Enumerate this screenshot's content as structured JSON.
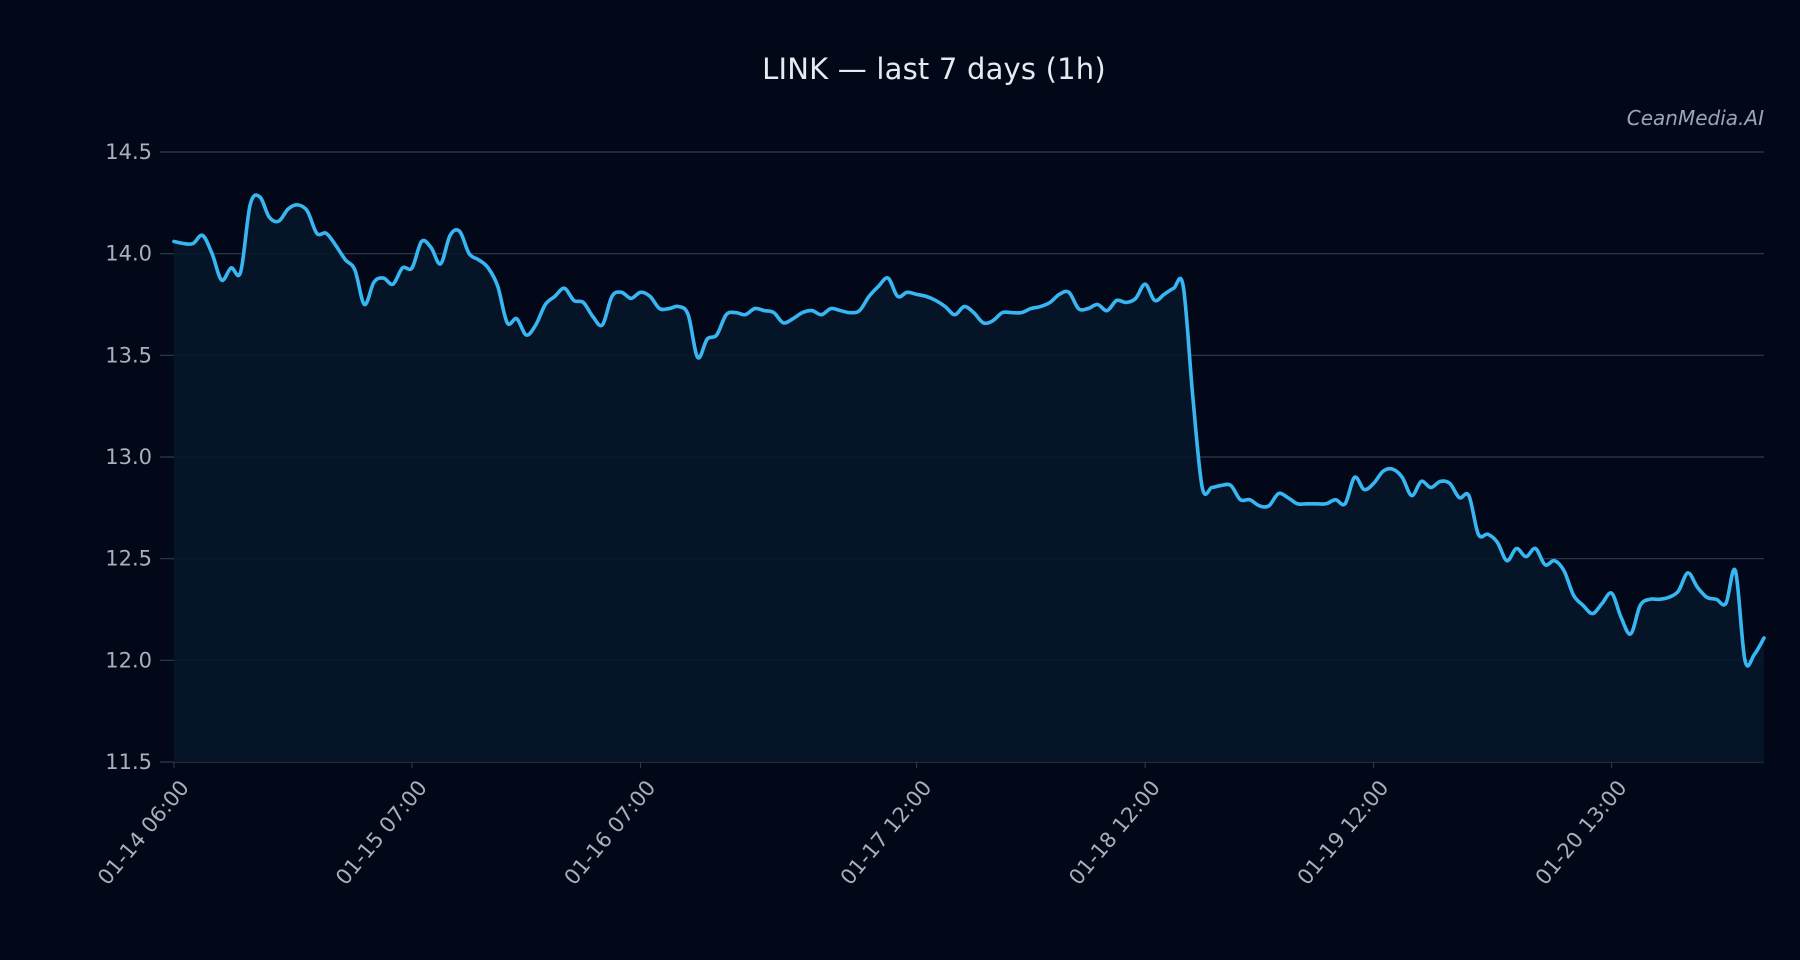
{
  "watermark": "CeanMedia.AI",
  "colors": {
    "background": "#020817",
    "line": "#38b6f2",
    "area": "#071629",
    "grid": "#2f3b4c",
    "text": "#a7b0bd",
    "title": "#e6ebf2"
  },
  "chart_data": {
    "type": "area",
    "title": "LINK — last 7 days (1h)",
    "xlabel": "",
    "ylabel": "",
    "ylim": [
      11.5,
      14.5
    ],
    "yticks": [
      11.5,
      12.0,
      12.5,
      13.0,
      13.5,
      14.0,
      14.5
    ],
    "ytick_labels": [
      "11.5",
      "12.0",
      "12.5",
      "13.0",
      "13.5",
      "14.0",
      "14.5"
    ],
    "x_start": "01-14 06:00",
    "interval": "1h",
    "xtick_labels": [
      "01-14 06:00",
      "01-15 07:00",
      "01-16 07:00",
      "01-17 12:00",
      "01-18 12:00",
      "01-19 12:00",
      "01-20 13:00"
    ],
    "xtick_index": [
      0,
      25,
      49,
      78,
      102,
      126,
      151
    ],
    "grid": true,
    "legend": "none",
    "series": [
      {
        "values": [
          14.06,
          14.05,
          14.05,
          14.09,
          14.0,
          13.87,
          13.93,
          13.91,
          14.24,
          14.28,
          14.18,
          14.16,
          14.22,
          14.24,
          14.21,
          14.1,
          14.1,
          14.04,
          13.97,
          13.92,
          13.75,
          13.86,
          13.88,
          13.85,
          13.93,
          13.93,
          14.06,
          14.03,
          13.95,
          14.09,
          14.11,
          14.0,
          13.97,
          13.93,
          13.84,
          13.66,
          13.68,
          13.6,
          13.65,
          13.75,
          13.79,
          13.83,
          13.77,
          13.76,
          13.69,
          13.65,
          13.79,
          13.81,
          13.78,
          13.81,
          13.79,
          13.73,
          13.73,
          13.74,
          13.7,
          13.49,
          13.58,
          13.6,
          13.7,
          13.71,
          13.7,
          13.73,
          13.72,
          13.71,
          13.66,
          13.68,
          13.71,
          13.72,
          13.7,
          13.73,
          13.72,
          13.71,
          13.72,
          13.79,
          13.84,
          13.88,
          13.79,
          13.81,
          13.8,
          13.79,
          13.77,
          13.74,
          13.7,
          13.74,
          13.71,
          13.66,
          13.67,
          13.71,
          13.71,
          13.71,
          13.73,
          13.74,
          13.76,
          13.8,
          13.81,
          13.73,
          13.73,
          13.75,
          13.72,
          13.77,
          13.76,
          13.78,
          13.85,
          13.77,
          13.8,
          13.83,
          13.84,
          13.3,
          12.85,
          12.85,
          12.86,
          12.86,
          12.79,
          12.79,
          12.76,
          12.76,
          12.82,
          12.8,
          12.77,
          12.77,
          12.77,
          12.77,
          12.79,
          12.77,
          12.9,
          12.84,
          12.87,
          12.93,
          12.94,
          12.9,
          12.81,
          12.88,
          12.85,
          12.88,
          12.87,
          12.8,
          12.81,
          12.62,
          12.62,
          12.58,
          12.49,
          12.55,
          12.51,
          12.55,
          12.47,
          12.49,
          12.44,
          12.32,
          12.27,
          12.23,
          12.28,
          12.33,
          12.21,
          12.13,
          12.27,
          12.3,
          12.3,
          12.31,
          12.34,
          12.43,
          12.36,
          12.31,
          12.3,
          12.28,
          12.44,
          12.0,
          12.03,
          12.11
        ]
      }
    ]
  }
}
